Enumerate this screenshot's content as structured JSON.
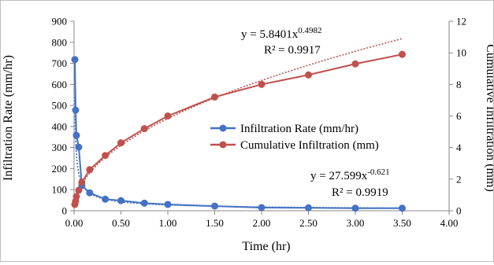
{
  "chart_data": {
    "type": "scatter",
    "x_axis": {
      "title": "Time (hr)",
      "range": [
        0,
        4
      ],
      "ticks": [
        0,
        0.5,
        1,
        1.5,
        2,
        2.5,
        3,
        3.5,
        4
      ],
      "tick_labels": [
        "0.00",
        "0.50",
        "1.00",
        "1.50",
        "2.00",
        "2.50",
        "3.00",
        "3.50",
        "4.00"
      ]
    },
    "y_left": {
      "title": "Infiltration  Rate  (mm/hr)",
      "range": [
        0,
        900
      ],
      "ticks": [
        0,
        100,
        200,
        300,
        400,
        500,
        600,
        700,
        800,
        900
      ],
      "tick_labels": [
        "0",
        "100",
        "200",
        "300",
        "400",
        "500",
        "600",
        "700",
        "800",
        "900"
      ]
    },
    "y_right": {
      "title": "Cumulative  Infiltration  (mm)",
      "range": [
        0,
        12
      ],
      "ticks": [
        0,
        2,
        4,
        6,
        8,
        10,
        12
      ],
      "tick_labels": [
        "0",
        "2",
        "4",
        "6",
        "8",
        "10",
        "12"
      ]
    },
    "grid": false,
    "legend": {
      "placement": "center-right",
      "entries": [
        "Infiltration Rate (mm/hr)",
        "Cumulative Infiltration (mm)"
      ]
    },
    "series": [
      {
        "name": "Infiltration Rate (mm/hr)",
        "axis": "left",
        "color": "#4472c4",
        "x": [
          0.0083,
          0.0167,
          0.025,
          0.05,
          0.083,
          0.167,
          0.333,
          0.5,
          0.75,
          1.0,
          1.5,
          2.0,
          2.5,
          3.0,
          3.5
        ],
        "y": [
          718,
          478,
          358,
          302,
          120,
          85,
          55,
          48,
          36,
          30,
          22,
          15,
          14,
          12,
          12
        ],
        "trendline": {
          "type": "power",
          "a": 27.599,
          "b": -0.621,
          "equation_base": "y = 27.599x",
          "equation_exp": "-0.621",
          "r2_label": "R² = 0.9919"
        }
      },
      {
        "name": "Cumulative Infiltration (mm)",
        "axis": "right",
        "color": "#c0504d",
        "x": [
          0.0083,
          0.0167,
          0.025,
          0.05,
          0.083,
          0.167,
          0.333,
          0.5,
          0.75,
          1.0,
          1.5,
          2.0,
          2.5,
          3.0,
          3.5
        ],
        "y": [
          0.4,
          0.6,
          0.9,
          1.3,
          1.8,
          2.6,
          3.5,
          4.3,
          5.2,
          6.0,
          7.2,
          8.0,
          8.6,
          9.3,
          9.9
        ],
        "trendline": {
          "type": "power",
          "a": 5.8401,
          "b": 0.4982,
          "equation_base": "y = 5.8401x",
          "equation_exp": "0.4982",
          "r2_label": "R² = 0.9917"
        }
      }
    ]
  }
}
